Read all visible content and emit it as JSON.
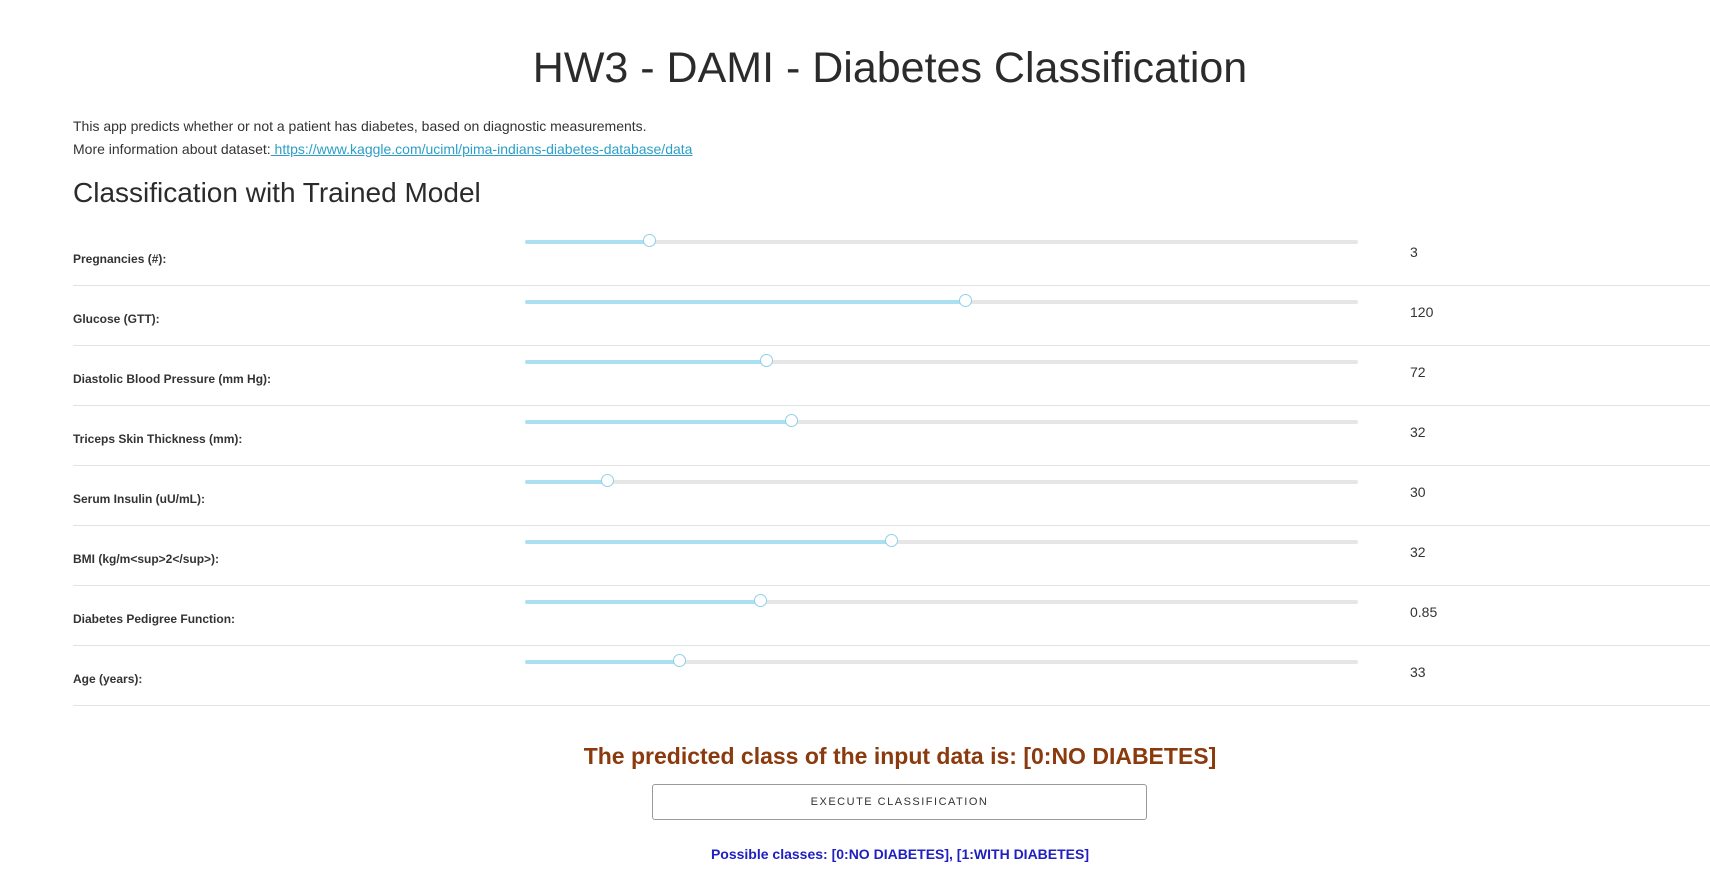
{
  "header": {
    "title": "HW3 - DAMI - Diabetes Classification"
  },
  "intro": {
    "line1": "This app predicts whether or not a patient has diabetes, based on diagnostic measurements.",
    "line2_prefix": "More information about dataset:",
    "link_text": " https://www.kaggle.com/uciml/pima-indians-diabetes-database/data"
  },
  "section": {
    "title": "Classification with Trained Model"
  },
  "sliders": [
    {
      "label": "Pregnancies (#):",
      "value": "3",
      "fraction": 0.15
    },
    {
      "label": "Glucose (GTT):",
      "value": "120",
      "fraction": 0.53
    },
    {
      "label": "Diastolic Blood Pressure (mm Hg):",
      "value": "72",
      "fraction": 0.29
    },
    {
      "label": "Triceps Skin Thickness (mm):",
      "value": "32",
      "fraction": 0.32
    },
    {
      "label": "Serum Insulin (uU/mL):",
      "value": "30",
      "fraction": 0.1
    },
    {
      "label": "BMI (kg/m<sup>2</sup>):",
      "value": "32",
      "fraction": 0.44
    },
    {
      "label": "Diabetes Pedigree Function:",
      "value": "0.85",
      "fraction": 0.283
    },
    {
      "label": "Age (years):",
      "value": "33",
      "fraction": 0.186
    }
  ],
  "result": {
    "text": "The predicted class of the input data is: [0:NO DIABETES]"
  },
  "actions": {
    "execute_label": "EXECUTE CLASSIFICATION"
  },
  "footer": {
    "classes_text": "Possible classes: [0:NO DIABETES], [1:WITH DIABETES]"
  },
  "colors": {
    "slider_fill": "#abdff2",
    "result_text": "#8b3a0e",
    "classes_text": "#2020c0",
    "link": "#2b9fc8"
  }
}
